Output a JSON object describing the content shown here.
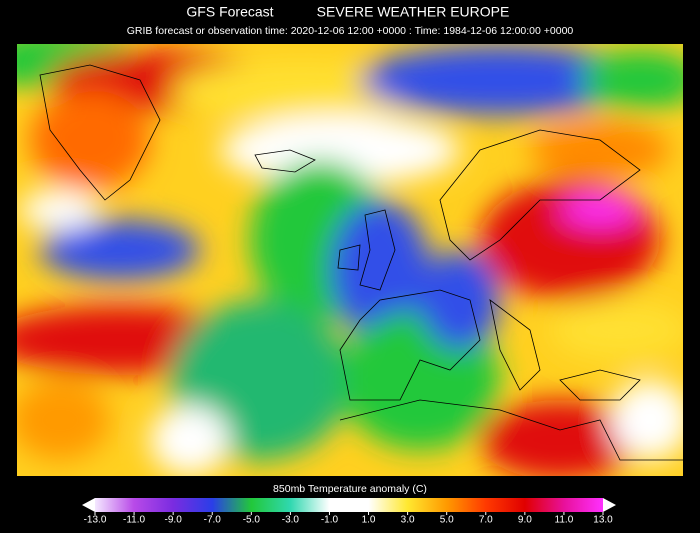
{
  "header": {
    "title_left": "GFS Forecast",
    "title_right": "SEVERE WEATHER EUROPE",
    "subtitle": "GRIB forecast or observation time: 2020-12-06 12:00 +0000 : Time: 1984-12-06 12:00:00 +0000"
  },
  "colorbar": {
    "label": "850mb Temperature anomaly (C)",
    "lim": [
      -13,
      13
    ],
    "ticks": [
      {
        "value": -13,
        "label": "-13.0"
      },
      {
        "value": -11,
        "label": "-11.0"
      },
      {
        "value": -9,
        "label": "-9.0"
      },
      {
        "value": -7,
        "label": "-7.0"
      },
      {
        "value": -5,
        "label": "-5.0"
      },
      {
        "value": -3,
        "label": "-3.0"
      },
      {
        "value": -1,
        "label": "-1.0"
      },
      {
        "value": 1,
        "label": "1.0"
      },
      {
        "value": 3,
        "label": "3.0"
      },
      {
        "value": 5,
        "label": "5.0"
      },
      {
        "value": 7,
        "label": "7.0"
      },
      {
        "value": 9,
        "label": "9.0"
      },
      {
        "value": 11,
        "label": "11.0"
      },
      {
        "value": 13,
        "label": "13.0"
      }
    ],
    "colors": [
      "#f4e8ff",
      "#b84ae8",
      "#7a2ce0",
      "#2a3ee8",
      "#22c83a",
      "#30d8b0",
      "#ffffff",
      "#ffffff",
      "#ffe830",
      "#ff9a00",
      "#ff3a00",
      "#e00000",
      "#e8109a",
      "#ff30ff"
    ]
  }
}
